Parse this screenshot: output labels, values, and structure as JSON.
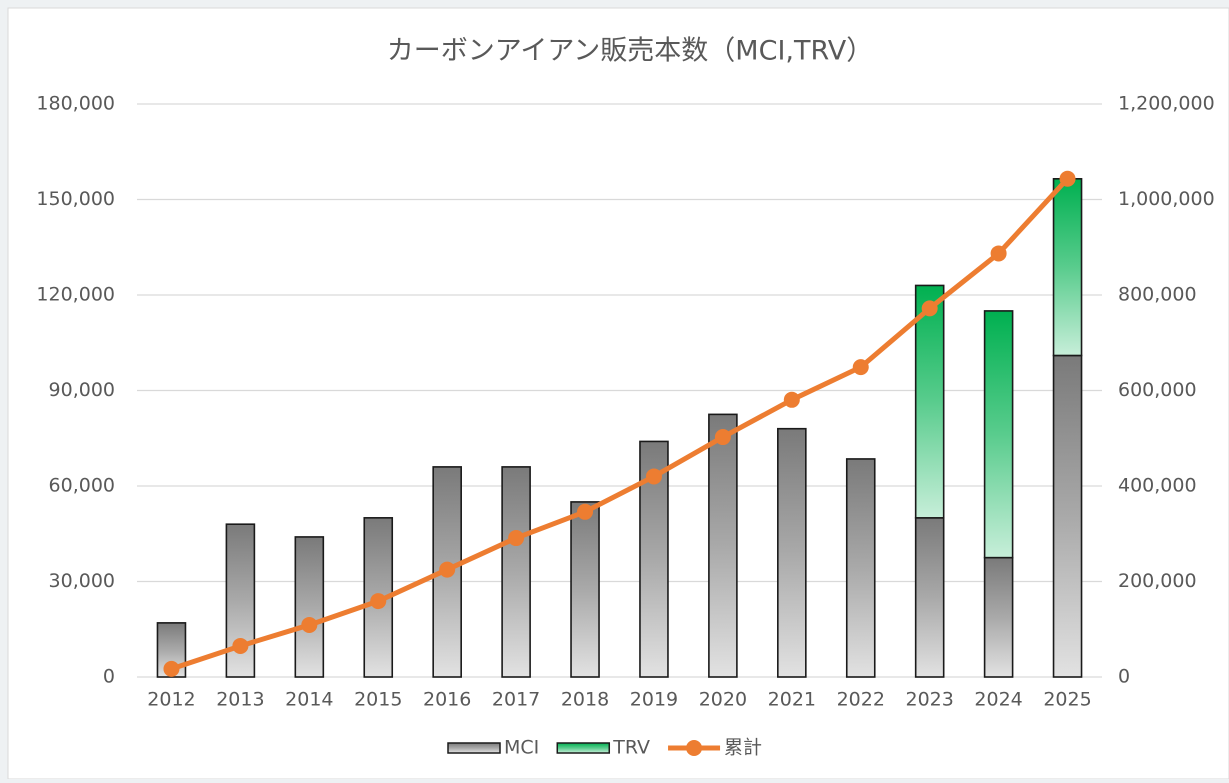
{
  "chart_data": {
    "type": "bar",
    "title": "カーボンアイアン販売本数（MCI,TRV）",
    "categories": [
      "2012",
      "2013",
      "2014",
      "2015",
      "2016",
      "2017",
      "2018",
      "2019",
      "2020",
      "2021",
      "2022",
      "2023",
      "2024",
      "2025"
    ],
    "series": [
      {
        "name": "MCI",
        "color": "#7a7a7a",
        "type": "bar",
        "values": [
          17000,
          48000,
          44000,
          50000,
          66000,
          66000,
          55000,
          74000,
          82500,
          78000,
          68500,
          50000,
          37500,
          101000
        ]
      },
      {
        "name": "TRV",
        "color": "#00b050",
        "type": "bar",
        "values": [
          null,
          null,
          null,
          null,
          null,
          null,
          null,
          null,
          null,
          null,
          null,
          73000,
          77500,
          55500
        ]
      },
      {
        "name": "累計",
        "color": "#ed7d31",
        "type": "line",
        "axis": "y2",
        "values": [
          17000,
          65000,
          109000,
          159000,
          225000,
          291000,
          346000,
          420000,
          502500,
          580500,
          649000,
          772000,
          887000,
          1043500
        ]
      }
    ],
    "ylim": [
      0,
      180000
    ],
    "yticks": [
      0,
      {
        "value": 30000,
        "label": "30,000"
      },
      {
        "value": 60000,
        "label": "60,000"
      },
      {
        "value": 90000,
        "label": "90,000"
      },
      {
        "value": 120000,
        "label": "120,000"
      },
      {
        "value": 150000,
        "label": "150,000"
      },
      {
        "value": 180000,
        "label": "180,000"
      }
    ],
    "y2lim": [
      0,
      1200000
    ],
    "y2ticks": [
      0,
      {
        "value": 200000,
        "label": "200,000"
      },
      {
        "value": 400000,
        "label": "400,000"
      },
      {
        "value": 600000,
        "label": "600,000"
      },
      {
        "value": 800000,
        "label": "800,000"
      },
      {
        "value": 1000000,
        "label": "1,000,000"
      },
      {
        "value": 1200000,
        "label": "1,200,000"
      }
    ],
    "grid": true,
    "legend": "bottom"
  }
}
